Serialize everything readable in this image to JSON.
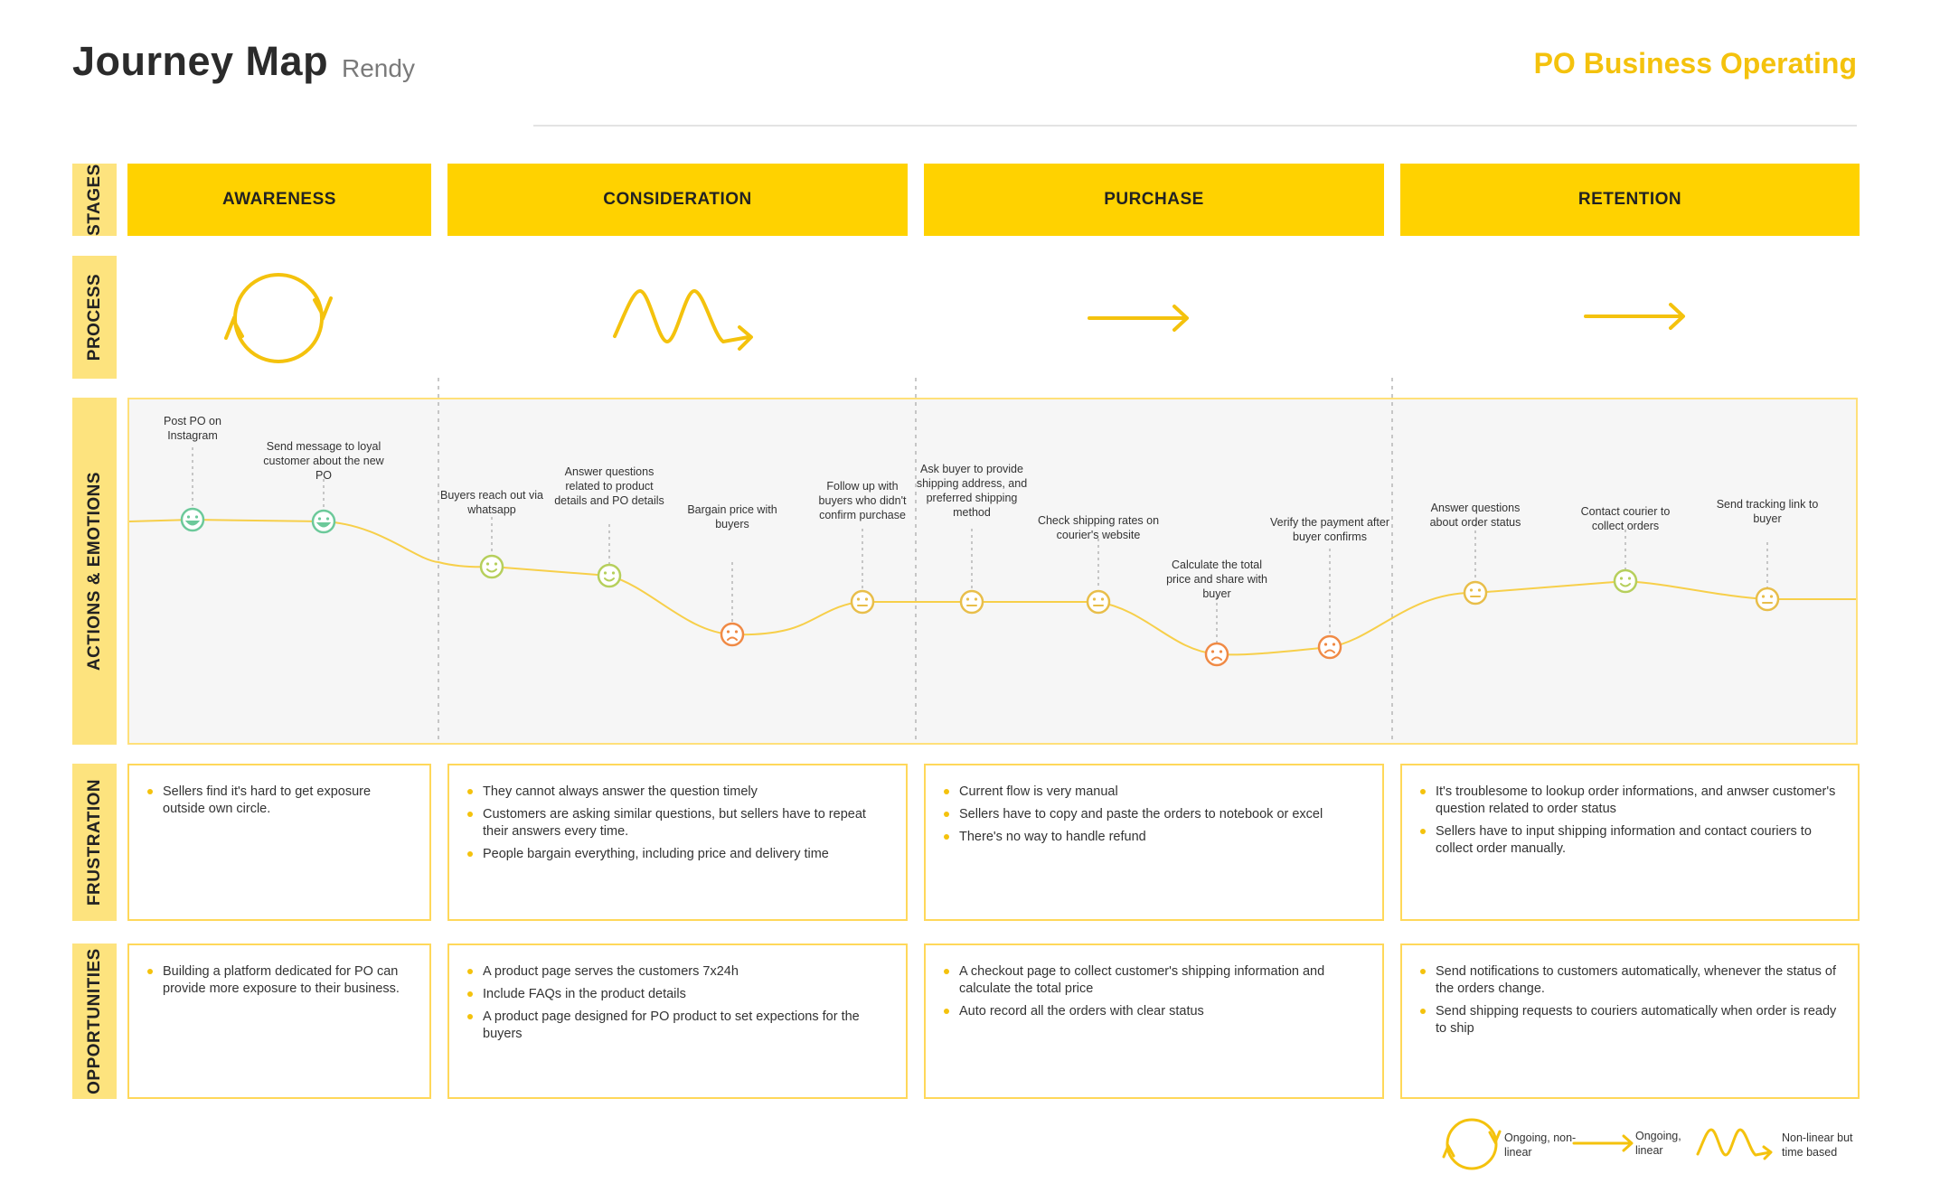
{
  "header": {
    "title": "Journey Map",
    "persona": "Rendy",
    "brand": "PO Business Operating"
  },
  "row_labels": {
    "stages": "STAGES",
    "process": "PROCESS",
    "actions": "ACTIONS & EMOTIONS",
    "frustration": "FRUSTRATION",
    "opportunities": "OPPORTUNITIES"
  },
  "stages": [
    {
      "label": "AWARENESS",
      "process_icon": "circular-arrow-icon"
    },
    {
      "label": "CONSIDERATION",
      "process_icon": "zigzag-arrow-icon"
    },
    {
      "label": "PURCHASE",
      "process_icon": "straight-arrow-icon"
    },
    {
      "label": "RETENTION",
      "process_icon": "straight-arrow-icon"
    }
  ],
  "actions": [
    {
      "label": "Post PO on Instagram",
      "emotion": "very-happy"
    },
    {
      "label": "Send message to loyal customer about the new PO",
      "emotion": "very-happy"
    },
    {
      "label": "Buyers reach out via whatsapp",
      "emotion": "happy"
    },
    {
      "label": "Answer questions related to product details and PO details",
      "emotion": "happy"
    },
    {
      "label": "Bargain price with buyers",
      "emotion": "sad"
    },
    {
      "label": "Follow up with buyers who didn't confirm purchase",
      "emotion": "neutral"
    },
    {
      "label": "Ask buyer to provide shipping address, and preferred shipping method",
      "emotion": "neutral"
    },
    {
      "label": "Check shipping rates on courier's website",
      "emotion": "neutral"
    },
    {
      "label": "Calculate the total price  and share with buyer",
      "emotion": "sad"
    },
    {
      "label": "Verify the payment after buyer confirms",
      "emotion": "sad"
    },
    {
      "label": "Answer questions about order status",
      "emotion": "neutral"
    },
    {
      "label": "Contact courier to collect orders",
      "emotion": "happy"
    },
    {
      "label": "Send tracking link to buyer",
      "emotion": "neutral"
    }
  ],
  "frustration": [
    [
      "Sellers find it's hard to get exposure outside own circle."
    ],
    [
      "They cannot always answer the question timely",
      "Customers are asking similar questions, but sellers have to repeat their answers every time.",
      "People bargain everything, including price and delivery time"
    ],
    [
      "Current flow is very manual",
      "Sellers have to copy and paste the orders to notebook or excel",
      "There's no way to handle refund"
    ],
    [
      "It's troublesome to lookup order informations, and anwser customer's question related to order status",
      "Sellers have to input shipping information and contact couriers to collect order manually."
    ]
  ],
  "opportunities": [
    [
      "Building a platform dedicated for PO can provide more exposure to their business."
    ],
    [
      "A product page serves the customers 7x24h",
      "Include FAQs in the product details",
      "A product page designed for PO product to set expections for the buyers"
    ],
    [
      "A checkout page to collect customer's shipping information and calculate the total price",
      "Auto record all the orders with clear status"
    ],
    [
      "Send notifications to customers automatically, whenever the status of the orders change.",
      "Send shipping requests to couriers automatically when order is ready to ship"
    ]
  ],
  "legend": [
    {
      "label": "Ongoing, non-linear",
      "icon": "circular-arrow-icon"
    },
    {
      "label": "Ongoing, linear",
      "icon": "straight-arrow-icon"
    },
    {
      "label": "Non-linear but time based",
      "icon": "zigzag-arrow-icon"
    }
  ],
  "colors": {
    "accent": "#ffd200",
    "label_bg": "#fde37e",
    "very_happy": "#6cc99a",
    "happy": "#b6cf5c",
    "neutral": "#e8be4a",
    "sad": "#f08a45"
  }
}
